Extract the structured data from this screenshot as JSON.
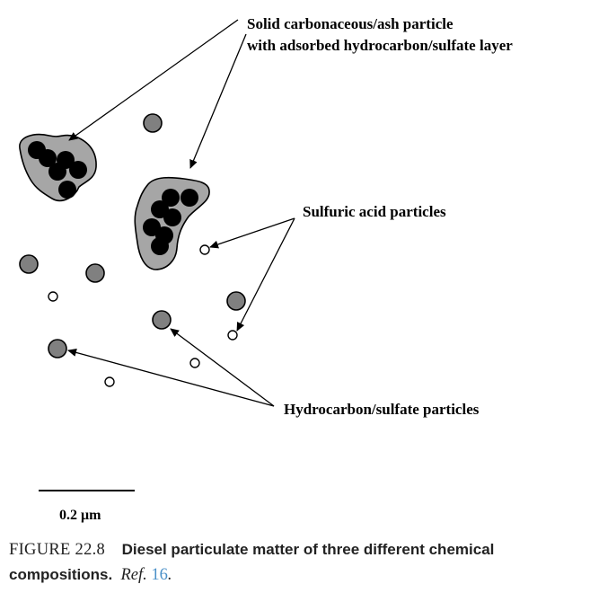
{
  "diagram": {
    "labels": {
      "agglomerate_line1": "Solid carbonaceous/ash particle",
      "agglomerate_line2": "with adsorbed hydrocarbon/sulfate layer",
      "sulfuric": "Sulfuric acid particles",
      "hydrocarbon": "Hydrocarbon/sulfate particles"
    },
    "scale_bar": {
      "label": "0.2 μm"
    },
    "colors": {
      "layer_fill": "#a6a6a6",
      "core_fill": "#000000",
      "hydrocarbon_fill": "#808080",
      "sulfuric_fill": "#ffffff",
      "line": "#000000"
    }
  },
  "caption": {
    "number": "FIGURE 22.8",
    "title": "Diesel particulate matter of three different chemical compositions.",
    "ref_prefix": "Ref.",
    "ref_number": "16",
    "ref_suffix": "."
  }
}
